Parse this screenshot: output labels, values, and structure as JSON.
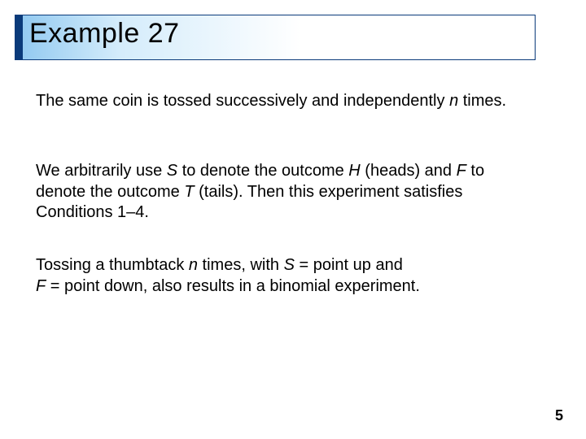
{
  "title": "Example 27",
  "para1": {
    "pre": "The same coin is tossed successively and independently ",
    "n": "n",
    "post": " times."
  },
  "para2": {
    "a": "We arbitrarily use ",
    "S": "S",
    "b": " to denote the outcome ",
    "H": "H",
    "c": " (heads) and ",
    "F": "F",
    "d": " to denote the outcome ",
    "T": "T",
    "e": " (tails). Then this experiment satisfies Conditions 1–4."
  },
  "para3": {
    "a": "Tossing a thumbtack ",
    "n": "n",
    "b": " times, with ",
    "S": "S",
    "c": " = point up and",
    "br": "",
    "F": "F",
    "d": " = point down, also results in a binomial experiment."
  },
  "page_number": "5",
  "colors": {
    "border": "#0a3a7a",
    "accent": "#0a3a7a",
    "grad_start": "#8fc8f0",
    "grad_mid": "#d4ecfb",
    "background": "#ffffff",
    "text": "#000000"
  },
  "fontsize": {
    "title": 34,
    "body": 20,
    "pagenum": 18
  }
}
